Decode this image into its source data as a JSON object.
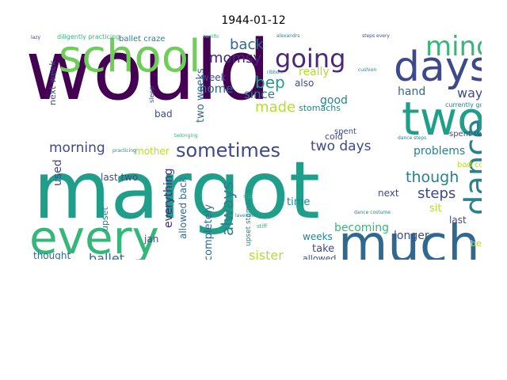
{
  "figure": {
    "title": "1944-01-12"
  },
  "palette": [
    "#440154",
    "#482878",
    "#3e4989",
    "#31688e",
    "#26828e",
    "#1f9e89",
    "#35b779",
    "#6ece58",
    "#b5de2b",
    "#fde725"
  ],
  "words": [
    {
      "text": "would",
      "color": "#440154"
    },
    {
      "text": "margot",
      "color": "#1f9e89"
    },
    {
      "text": "every",
      "color": "#35b779"
    },
    {
      "text": "much",
      "color": "#31688e"
    },
    {
      "text": "school",
      "color": "#6ece58"
    },
    {
      "text": "days",
      "color": "#3e4989"
    },
    {
      "text": "two",
      "color": "#1f9e89"
    },
    {
      "text": "going",
      "color": "#482878"
    },
    {
      "text": "mind",
      "color": "#35b779"
    },
    {
      "text": "dance",
      "color": "#26828e"
    },
    {
      "text": "sometimes",
      "color": "#3e4989"
    },
    {
      "text": "morning",
      "color": "#3e4989"
    },
    {
      "text": "always",
      "color": "#26828e"
    },
    {
      "text": "two days",
      "color": "#3e4989"
    },
    {
      "text": "momsy",
      "color": "#482878"
    },
    {
      "text": "bep",
      "color": "#1f9e89"
    },
    {
      "text": "back",
      "color": "#31688e"
    },
    {
      "text": "made",
      "color": "#b5de2b"
    },
    {
      "text": "since",
      "color": "#26828e"
    },
    {
      "text": "really",
      "color": "#b5de2b"
    },
    {
      "text": "though",
      "color": "#26828e"
    },
    {
      "text": "steps",
      "color": "#3e4989"
    },
    {
      "text": "ballet",
      "color": "#31688e"
    },
    {
      "text": "sister",
      "color": "#b5de2b"
    },
    {
      "text": "way",
      "color": "#3e4989"
    },
    {
      "text": "home",
      "color": "#31688e"
    },
    {
      "text": "two weeks",
      "color": "#31688e"
    },
    {
      "text": "good",
      "color": "#26828e"
    },
    {
      "text": "hand",
      "color": "#31688e"
    },
    {
      "text": "used",
      "color": "#3e4989"
    },
    {
      "text": "problems",
      "color": "#26828e"
    },
    {
      "text": "becoming",
      "color": "#35b779"
    },
    {
      "text": "longer",
      "color": "#3e4989"
    },
    {
      "text": "mother",
      "color": "#b5de2b"
    },
    {
      "text": "everything",
      "color": "#482878"
    },
    {
      "text": "allowed back",
      "color": "#31688e"
    },
    {
      "text": "completely",
      "color": "#31688e"
    },
    {
      "text": "thought",
      "color": "#31688e"
    },
    {
      "text": "jan",
      "color": "#3e4989"
    },
    {
      "text": "last two",
      "color": "#3e4989"
    },
    {
      "text": "upset",
      "color": "#26828e"
    },
    {
      "text": "next",
      "color": "#3e4989"
    },
    {
      "text": "time",
      "color": "#26828e"
    },
    {
      "text": "sit",
      "color": "#b5de2b"
    },
    {
      "text": "last",
      "color": "#3e4989"
    },
    {
      "text": "weeks",
      "color": "#26828e"
    },
    {
      "text": "take",
      "color": "#3e4989"
    },
    {
      "text": "allowed",
      "color": "#3e4989"
    },
    {
      "text": "bad",
      "color": "#3e4989"
    },
    {
      "text": "cold",
      "color": "#3e4989"
    },
    {
      "text": "also",
      "color": "#3e4989"
    },
    {
      "text": "bed",
      "color": "#b5de2b"
    },
    {
      "text": "week",
      "color": "#3e4989"
    },
    {
      "text": "next week",
      "color": "#3e4989"
    },
    {
      "text": "stomachs",
      "color": "#26828e"
    },
    {
      "text": "spent two",
      "color": "#3e4989"
    },
    {
      "text": "bad cold",
      "color": "#b5de2b"
    },
    {
      "text": "spent",
      "color": "#3e4989"
    },
    {
      "text": "ballet craze",
      "color": "#26828e"
    },
    {
      "text": "diligently practicing",
      "color": "#35b779"
    },
    {
      "text": "upset stomachs",
      "color": "#26828e"
    },
    {
      "text": "currently going",
      "color": "#26828e"
    },
    {
      "text": "sleep",
      "color": "#3e4989"
    },
    {
      "text": "lazy",
      "color": "#3e4989"
    },
    {
      "text": "cushion",
      "color": "#26828e"
    },
    {
      "text": "alexandrs",
      "color": "#26828e"
    },
    {
      "text": "steps every",
      "color": "#3e4989"
    },
    {
      "text": "terrific",
      "color": "#35b779"
    },
    {
      "text": "ribbon",
      "color": "#26828e"
    },
    {
      "text": "dance steps",
      "color": "#26828e"
    },
    {
      "text": "stiff",
      "color": "#35b779"
    },
    {
      "text": "lavender",
      "color": "#26828e"
    },
    {
      "text": "practicing",
      "color": "#26828e"
    },
    {
      "text": "dance costume",
      "color": "#26828e"
    },
    {
      "text": "slip",
      "color": "#35b779"
    },
    {
      "text": "belonging",
      "color": "#35b779"
    }
  ]
}
